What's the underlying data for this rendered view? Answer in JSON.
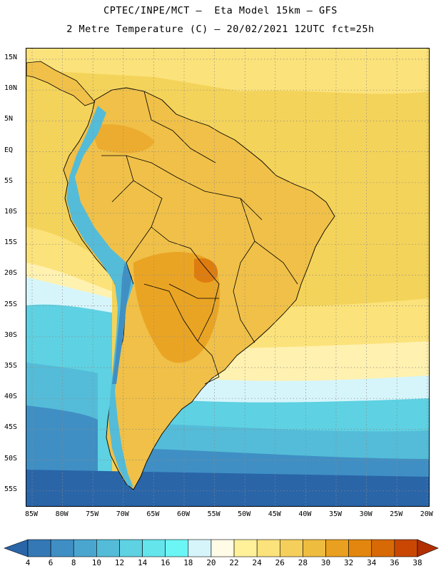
{
  "header": {
    "title_line1": "CPTEC/INPE/MCT –  Eta Model 15km – GFS",
    "title_line2": "2 Metre Temperature (C) – 20/02/2021 12UTC fct=25h"
  },
  "map": {
    "lat_labels": [
      "15N",
      "10N",
      "5N",
      "EQ",
      "5S",
      "10S",
      "15S",
      "20S",
      "25S",
      "30S",
      "35S",
      "40S",
      "45S",
      "50S",
      "55S"
    ],
    "lon_labels": [
      "85W",
      "80W",
      "75W",
      "70W",
      "65W",
      "60W",
      "55W",
      "50W",
      "45W",
      "40W",
      "35W",
      "30W",
      "25W",
      "20W"
    ]
  },
  "colorbar": {
    "levels": [
      "4",
      "6",
      "8",
      "10",
      "12",
      "14",
      "16",
      "18",
      "20",
      "22",
      "24",
      "26",
      "28",
      "30",
      "32",
      "34",
      "36",
      "38"
    ],
    "colors": [
      "#2a65a8",
      "#3479b6",
      "#3f8fc4",
      "#4aa6cf",
      "#54bcd8",
      "#5ed1e2",
      "#64e5ec",
      "#6cf5f5",
      "#d6f5fb",
      "#fffbe6",
      "#fff199",
      "#fbe27a",
      "#f5cf5c",
      "#eebc3f",
      "#e99f1f",
      "#e2860f",
      "#d86a06",
      "#c94703",
      "#b22f02"
    ]
  },
  "colors": {
    "ocean_tropical": "#f4d35a",
    "ocean_warm": "#fbe27a",
    "ocean_mild": "#fff1b0",
    "ocean_cool": "#d6f5fb",
    "ocean_cold": "#5ed1e2",
    "ocean_very_cold": "#3f8fc4",
    "ocean_coldest": "#2a65a8",
    "land_warm": "#f0c048",
    "land_hot": "#e99f1f",
    "land_hottest": "#dd7d10",
    "andes_cool": "#54bcd8",
    "border": "#000000",
    "grid": "#8a8a8a"
  }
}
